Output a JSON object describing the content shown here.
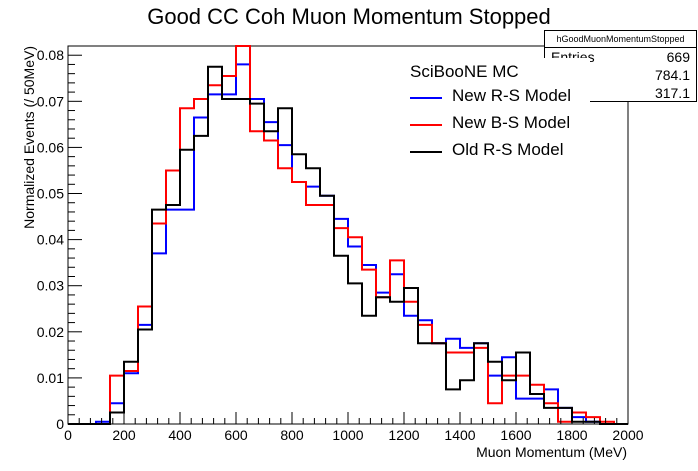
{
  "chart_data": {
    "type": "step-histogram",
    "title": "Good CC Coh Muon Momentum Stopped",
    "xlabel": "Muon Momentum (MeV)",
    "ylabel": "Normalized Events (/ 50MeV)",
    "xlim": [
      0,
      2000
    ],
    "ylim": [
      0,
      0.082
    ],
    "x_ticks": [
      0,
      200,
      400,
      600,
      800,
      1000,
      1200,
      1400,
      1600,
      1800,
      2000
    ],
    "y_ticks": [
      0,
      0.01,
      0.02,
      0.03,
      0.04,
      0.05,
      0.06,
      0.07,
      0.08
    ],
    "bin_edges_start": 0,
    "bin_width": 50,
    "grid": false,
    "legend_header": "SciBooNE MC",
    "legend_position": "top-right",
    "series": [
      {
        "name": "New R-S Model",
        "color": "#0000ff",
        "values": [
          0,
          0,
          0.0005,
          0.0045,
          0.011,
          0.0215,
          0.037,
          0.0465,
          0.0465,
          0.0665,
          0.0715,
          0.0715,
          0.078,
          0.0705,
          0.0655,
          0.0605,
          0.0525,
          0.0515,
          0.0495,
          0.0445,
          0.0385,
          0.0345,
          0.0285,
          0.0325,
          0.0235,
          0.0225,
          0.0175,
          0.0185,
          0.0165,
          0.0175,
          0.0105,
          0.0145,
          0.0055,
          0.0055,
          0.0075,
          0.0035,
          0.0015,
          0.0005,
          0,
          0
        ]
      },
      {
        "name": "New B-S Model",
        "color": "#ff0000",
        "values": [
          0,
          0,
          0,
          0.0105,
          0.0115,
          0.0255,
          0.0435,
          0.055,
          0.0685,
          0.0705,
          0.0735,
          0.0755,
          0.0845,
          0.0635,
          0.0615,
          0.0555,
          0.0525,
          0.0475,
          0.0475,
          0.0425,
          0.0405,
          0.0335,
          0.0275,
          0.0355,
          0.0265,
          0.0215,
          0.0175,
          0.0155,
          0.0155,
          0.0165,
          0.0045,
          0.0105,
          0.0105,
          0.0085,
          0.0045,
          0.0005,
          0.0025,
          0.0015,
          0.0005,
          0
        ]
      },
      {
        "name": "Old R-S Model",
        "color": "#000000",
        "values": [
          0,
          0,
          0,
          0.0025,
          0.0135,
          0.0205,
          0.0465,
          0.0475,
          0.0595,
          0.0625,
          0.0775,
          0.0705,
          0.0705,
          0.0695,
          0.0635,
          0.0685,
          0.0585,
          0.0555,
          0.0495,
          0.0365,
          0.0305,
          0.0235,
          0.0275,
          0.0265,
          0.0295,
          0.0175,
          0.0175,
          0.0075,
          0.0095,
          0.0175,
          0.0135,
          0.0095,
          0.0155,
          0.0065,
          0.0035,
          0.0035,
          0.0005,
          0.0005,
          0,
          0
        ]
      }
    ]
  },
  "stats_box": {
    "name": "hGoodMuonMomentumStopped",
    "rows": [
      {
        "key": "Entries",
        "value": "669"
      },
      {
        "key": "",
        "value": "784.1"
      },
      {
        "key": "",
        "value": "317.1"
      }
    ]
  }
}
